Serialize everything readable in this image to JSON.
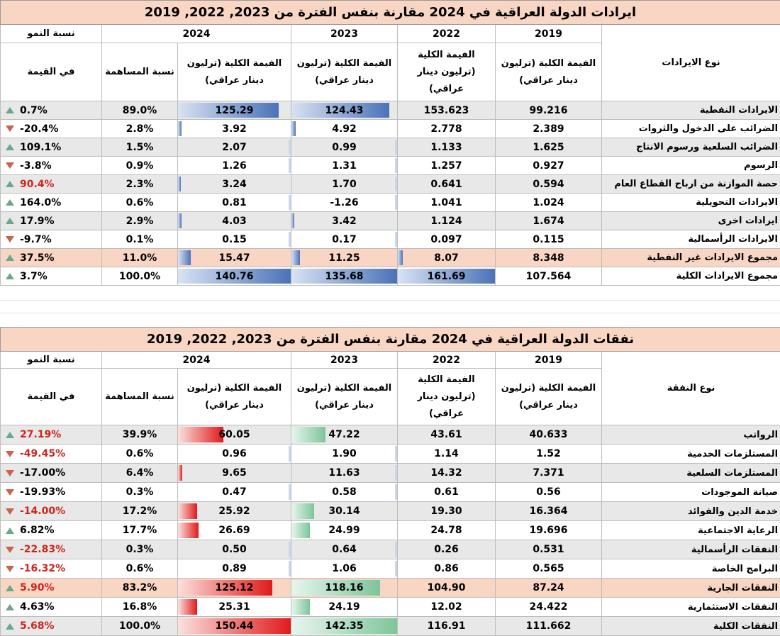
{
  "revenue": {
    "title": "ايرادات الدولة العراقية  في 2024 مقارنة بنفس الفترة من 2023, 2022, 2019",
    "growth_header": "نسبة النمو",
    "growth_sub": "في القيمة",
    "share_header": "نسبة المساهمة",
    "type_header": "نوع الايرادات",
    "years": [
      "2024",
      "2023",
      "2022",
      "2019"
    ],
    "value_header_2024": "الفيمة الكلية (ترليون دينار عراقي)",
    "value_header_2023": "الفيمة الكلية (ترليون دينار عراقي)",
    "value_header_2022": "الفيمة الكلية (ترليون دينار عراقي)",
    "value_header_2019": "الفيمة الكلية (ترليون دينار عراقي)",
    "rows": [
      {
        "label": "الايرادات النفطية",
        "y2019": "99.216",
        "y2022": "153.623",
        "y2023": "124.43",
        "y2024": "125.29",
        "share": "89.0%",
        "growth": "0.7%",
        "dir": "up",
        "red": false,
        "style": "gray",
        "bar2023": 0.92,
        "bar2024": 0.89
      },
      {
        "label": "الضرائب على الدخول والثروات",
        "y2019": "2.389",
        "y2022": "2.778",
        "y2023": "4.92",
        "y2024": "3.92",
        "share": "2.8%",
        "growth": "-20.4%",
        "dir": "down",
        "red": false,
        "style": "white",
        "bar2023": 0.04,
        "bar2024": 0.03
      },
      {
        "label": "الضرائب السلعية ورسوم الانتاج",
        "y2019": "1.625",
        "y2022": "1.133",
        "y2023": "0.99",
        "y2024": "2.07",
        "share": "1.5%",
        "growth": "109.1%",
        "dir": "up",
        "red": false,
        "style": "gray",
        "bar2023": 0.0,
        "bar2024": 0.0
      },
      {
        "label": "الرسوم",
        "y2019": "0.927",
        "y2022": "1.257",
        "y2023": "1.31",
        "y2024": "1.26",
        "share": "0.9%",
        "growth": "-3.8%",
        "dir": "down",
        "red": false,
        "style": "white",
        "bar2023": 0.0,
        "bar2024": 0.0
      },
      {
        "label": "حصة الموازنة من ارباح القطاع العام",
        "y2019": "0.594",
        "y2022": "0.641",
        "y2023": "1.70",
        "y2024": "3.24",
        "share": "2.3%",
        "growth": "90.4%",
        "dir": "up",
        "red": true,
        "style": "gray",
        "bar2023": 0.0,
        "bar2024": 0.02
      },
      {
        "label": "الايرادات التحويلية",
        "y2019": "1.024",
        "y2022": "1.041",
        "y2023": "-1.26",
        "y2024": "0.81",
        "share": "0.6%",
        "growth": "164.0%",
        "dir": "up",
        "red": false,
        "style": "white",
        "bar2023": 0.0,
        "bar2024": 0.0
      },
      {
        "label": "ايرادات اخرى",
        "y2019": "1.674",
        "y2022": "1.124",
        "y2023": "3.42",
        "y2024": "4.03",
        "share": "2.9%",
        "growth": "17.9%",
        "dir": "up",
        "red": false,
        "style": "gray",
        "bar2023": 0.02,
        "bar2024": 0.03
      },
      {
        "label": "الايرادات الرأسمالية",
        "y2019": "0.115",
        "y2022": "0.097",
        "y2023": "0.17",
        "y2024": "0.15",
        "share": "0.1%",
        "growth": "-9.7%",
        "dir": "down",
        "red": false,
        "style": "white",
        "bar2023": 0.0,
        "bar2024": 0.0
      },
      {
        "label": "مجموع الايرادات غير النفطية",
        "y2019": "8.348",
        "y2022": "8.07",
        "y2023": "11.25",
        "y2024": "15.47",
        "share": "11.0%",
        "growth": "37.5%",
        "dir": "up",
        "red": false,
        "style": "salmon",
        "bar2022": 0.05,
        "bar2023": 0.08,
        "bar2024": 0.11
      },
      {
        "label": "مجموع الايرادات الكلية",
        "y2019": "107.564",
        "y2022": "161.69",
        "y2023": "135.68",
        "y2024": "140.76",
        "share": "100.0%",
        "growth": "3.7%",
        "dir": "up",
        "red": false,
        "style": "white",
        "bar2022": 1.0,
        "bar2023": 0.99,
        "bar2024": 1.0
      }
    ]
  },
  "expense": {
    "title": "نفقات الدولة العراقية  في 2024 مقارنة بنفس الفترة من 2023, 2022, 2019",
    "growth_header": "نسبة النمو",
    "growth_sub": "في القيمة",
    "share_header": "نسبة المساهمة",
    "type_header": "نوع النفقة",
    "years": [
      "2024",
      "2023",
      "2022",
      "2019"
    ],
    "value_header_2024": "الفيمة الكلية (ترليون دينار عراقي)",
    "value_header_2023": "الفيمة الكلية (ترليون دينار عراقي)",
    "value_header_2022": "الفيمة الكلية (ترليون دينار عراقي)",
    "value_header_2019": "الفيمة الكلية (ترليون دينار عراقي)",
    "rows": [
      {
        "label": "الرواتب",
        "y2019": "40.633",
        "y2022": "43.61",
        "y2023": "47.22",
        "y2024": "60.05",
        "share": "39.9%",
        "growth": "27.19%",
        "dir": "up",
        "red": true,
        "style": "gray",
        "bar2023": 0.32,
        "bar2024": 0.4
      },
      {
        "label": "المستلزمات الخدمية",
        "y2019": "1.52",
        "y2022": "1.14",
        "y2023": "1.90",
        "y2024": "0.96",
        "share": "0.6%",
        "growth": "-49.45%",
        "dir": "down",
        "red": true,
        "style": "white",
        "bar2023": 0.0,
        "bar2024": 0.0
      },
      {
        "label": "المستلزمات السلعية",
        "y2019": "7.371",
        "y2022": "14.32",
        "y2023": "11.63",
        "y2024": "9.65",
        "share": "6.4%",
        "growth": "-17.00%",
        "dir": "down",
        "red": false,
        "style": "gray",
        "bar2023": 0.0,
        "bar2024": 0.04
      },
      {
        "label": "صيانة الموجودات",
        "y2019": "0.56",
        "y2022": "0.61",
        "y2023": "0.58",
        "y2024": "0.47",
        "share": "0.3%",
        "growth": "-19.93%",
        "dir": "down",
        "red": false,
        "style": "white",
        "bar2023": 0.0,
        "bar2024": 0.0
      },
      {
        "label": "خدمة الدين والفوائد",
        "y2019": "16.364",
        "y2022": "19.30",
        "y2023": "30.14",
        "y2024": "25.92",
        "share": "17.2%",
        "growth": "-14.00%",
        "dir": "down",
        "red": true,
        "style": "gray",
        "bar2023": 0.21,
        "bar2024": 0.17
      },
      {
        "label": "الرعاية الاجتماعية",
        "y2019": "19.696",
        "y2022": "24.78",
        "y2023": "24.99",
        "y2024": "26.69",
        "share": "17.7%",
        "growth": "6.82%",
        "dir": "up",
        "red": false,
        "style": "white",
        "bar2023": 0.17,
        "bar2024": 0.18
      },
      {
        "label": "النفقات الرأسمالية",
        "y2019": "0.531",
        "y2022": "0.26",
        "y2023": "0.64",
        "y2024": "0.50",
        "share": "0.3%",
        "growth": "-22.83%",
        "dir": "down",
        "red": true,
        "style": "gray",
        "bar2023": 0.0,
        "bar2024": 0.0
      },
      {
        "label": "البرامج الخاصة",
        "y2019": "0.565",
        "y2022": "0.86",
        "y2023": "1.06",
        "y2024": "0.89",
        "share": "0.6%",
        "growth": "-16.32%",
        "dir": "down",
        "red": true,
        "style": "white",
        "bar2023": 0.0,
        "bar2024": 0.0
      },
      {
        "label": "النفقات الجارية",
        "y2019": "87.24",
        "y2022": "104.90",
        "y2023": "118.16",
        "y2024": "125.12",
        "share": "83.2%",
        "growth": "5.90%",
        "dir": "up",
        "red": true,
        "style": "salmon",
        "bar2023": 0.83,
        "bar2024": 0.83
      },
      {
        "label": "النفقات الاستثمارية",
        "y2019": "24.422",
        "y2022": "12.02",
        "y2023": "24.19",
        "y2024": "25.31",
        "share": "16.8%",
        "growth": "4.63%",
        "dir": "up",
        "red": false,
        "style": "white",
        "bar2023": 0.17,
        "bar2024": 0.17
      },
      {
        "label": "النفقات الكلية",
        "y2019": "111.662",
        "y2022": "116.91",
        "y2023": "142.35",
        "y2024": "150.44",
        "share": "100.0%",
        "growth": "5.68%",
        "dir": "up",
        "red": true,
        "style": "gray",
        "bar2023": 1.0,
        "bar2024": 1.0
      }
    ]
  }
}
